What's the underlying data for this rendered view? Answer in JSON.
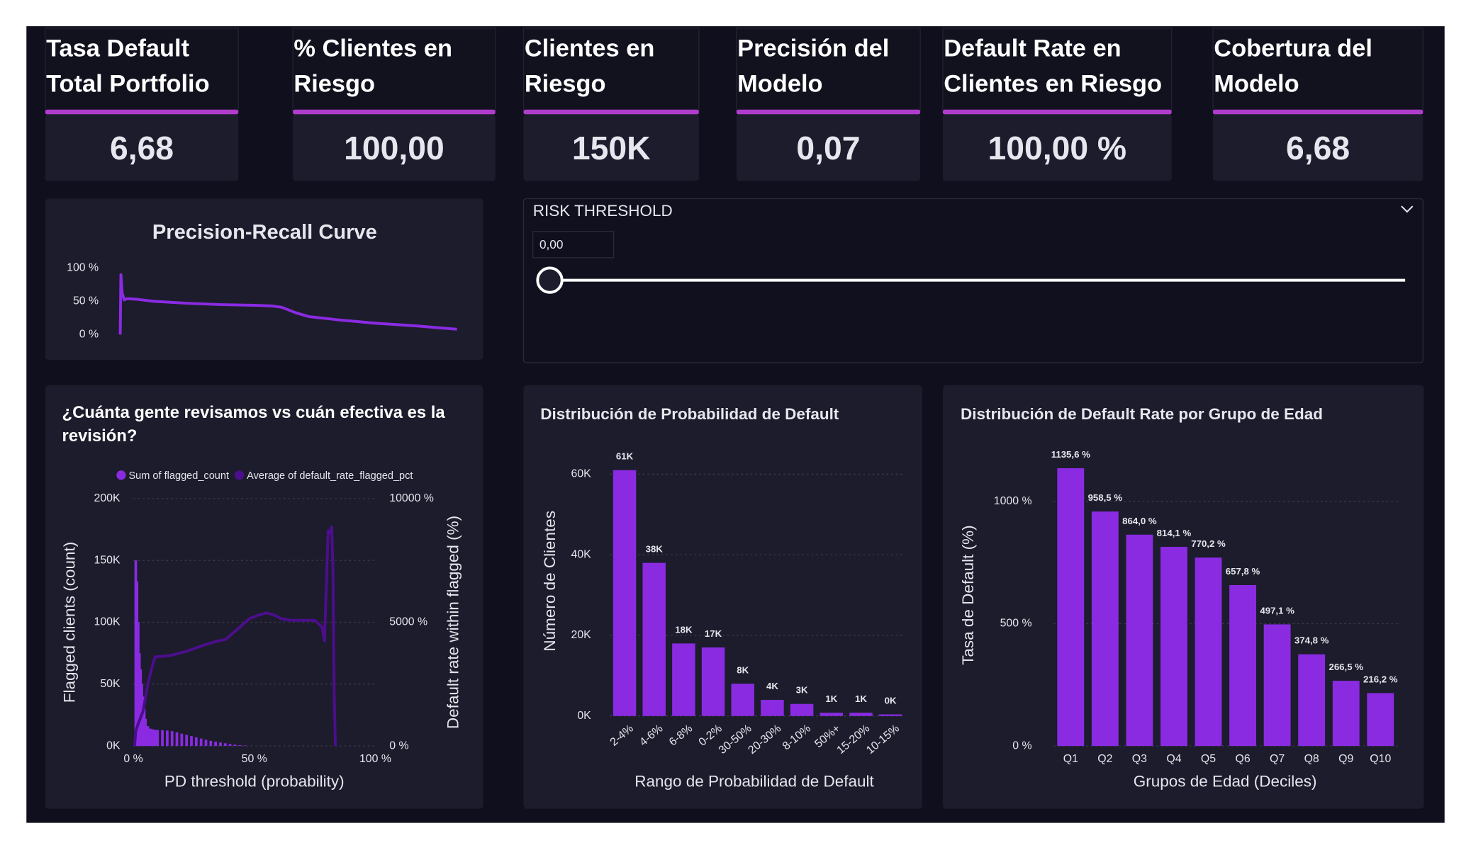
{
  "kpis": [
    {
      "title": "Tasa Default Total Portfolio",
      "value": "6,68"
    },
    {
      "title": "% Clientes en Riesgo",
      "value": "100,00"
    },
    {
      "title": "Clientes en Riesgo",
      "value": "150K"
    },
    {
      "title": "Precisión del Modelo",
      "value": "0,07"
    },
    {
      "title": "Default Rate en Clientes en Riesgo",
      "value": "100,00 %"
    },
    {
      "title": "Cobertura del Modelo",
      "value": "6,68"
    }
  ],
  "slicer": {
    "title": "RISK THRESHOLD",
    "value": "0,00"
  },
  "chart_data": [
    {
      "type": "line",
      "title": "Precision-Recall Curve",
      "color": "#8a2be2",
      "x": [
        0,
        0.002,
        0.006,
        0.012,
        0.02,
        0.05,
        0.1,
        0.2,
        0.3,
        0.4,
        0.45,
        0.48,
        0.52,
        0.56,
        0.65,
        0.76,
        0.88,
        1.0
      ],
      "values": [
        0,
        90,
        62,
        52,
        54,
        53,
        50,
        47,
        45,
        44,
        43,
        41,
        33,
        27,
        22,
        17,
        13,
        8
      ],
      "xlim": [
        0,
        1
      ],
      "ylim": [
        0,
        100
      ],
      "yticks": [
        {
          "value": 0,
          "label": "0 %"
        },
        {
          "value": 50,
          "label": "50 %"
        },
        {
          "value": 100,
          "label": "100 %"
        }
      ]
    },
    {
      "type": "combo",
      "title": "¿Cuánta gente revisamos vs cuán efectiva es la revisión?",
      "x_label": "PD threshold (probability)",
      "y_label": "Flagged clients (count)",
      "y2_label": "Default rate within flagged (%)",
      "xlim": [
        0,
        100
      ],
      "xticks": [
        {
          "value": 0,
          "label": "0 %"
        },
        {
          "value": 50,
          "label": "50 %"
        },
        {
          "value": 100,
          "label": "100 %"
        }
      ],
      "ylim": [
        0,
        200000
      ],
      "yticks": [
        {
          "value": 0,
          "label": "0K"
        },
        {
          "value": 50000,
          "label": "50K"
        },
        {
          "value": 100000,
          "label": "100K"
        },
        {
          "value": 150000,
          "label": "150K"
        },
        {
          "value": 200000,
          "label": "200K"
        }
      ],
      "y2lim": [
        0,
        10000
      ],
      "y2ticks": [
        {
          "value": 0,
          "label": "0 %"
        },
        {
          "value": 5000,
          "label": "5000 %"
        },
        {
          "value": 10000,
          "label": "10000 %"
        }
      ],
      "grid": true,
      "series": [
        {
          "name": "Sum of flagged_count",
          "color": "#8a2be2",
          "type": "bar",
          "x": [
            1,
            1.5,
            2,
            2.5,
            3,
            3.5,
            4,
            4.5,
            5,
            6,
            7,
            8,
            9,
            10,
            12,
            14,
            16,
            18,
            20,
            22,
            24,
            26,
            28,
            30,
            32,
            34,
            36,
            38,
            40,
            42,
            44,
            46
          ],
          "values": [
            150000,
            133000,
            100000,
            75000,
            62000,
            50000,
            40000,
            30000,
            22000,
            16000,
            14000,
            13500,
            13000,
            13000,
            12800,
            12500,
            12000,
            11000,
            10000,
            9000,
            8000,
            7000,
            6000,
            5000,
            4200,
            3500,
            2800,
            2200,
            1600,
            1100,
            700,
            400
          ]
        },
        {
          "name": "Average of default_rate_flagged_pct",
          "color": "#4b0e8c",
          "type": "line",
          "axis": "y2",
          "x": [
            0.5,
            1,
            2,
            4,
            6,
            8,
            9,
            15,
            22,
            30,
            35,
            38,
            44,
            48,
            52,
            55,
            58,
            61,
            65,
            70,
            75,
            78,
            79,
            80.5,
            81,
            82,
            82.5,
            83,
            83.5
          ],
          "values": [
            0,
            600,
            900,
            1400,
            2500,
            3300,
            3600,
            3650,
            3830,
            4100,
            4250,
            4300,
            4800,
            5150,
            5300,
            5380,
            5300,
            5150,
            5080,
            5080,
            5080,
            4800,
            4250,
            8700,
            8600,
            8850,
            7000,
            2000,
            0
          ]
        }
      ]
    },
    {
      "type": "bar",
      "title": "Distribución de Probabilidad de Default",
      "color": "#8a2be2",
      "x_label": "Rango de Probabilidad de Default",
      "y_label": "Número de Clientes",
      "categories": [
        "2-4%",
        "4-6%",
        "6-8%",
        "0-2%",
        "30-50%",
        "20-30%",
        "8-10%",
        "50%+",
        "15-20%",
        "10-15%"
      ],
      "values": [
        61000,
        38000,
        18000,
        17000,
        8000,
        4000,
        3000,
        800,
        800,
        400
      ],
      "value_labels": [
        "61K",
        "38K",
        "18K",
        "17K",
        "8K",
        "4K",
        "3K",
        "1K",
        "1K",
        "0K"
      ],
      "ylim": [
        0,
        60000
      ],
      "yticks": [
        {
          "value": 0,
          "label": "0K"
        },
        {
          "value": 20000,
          "label": "20K"
        },
        {
          "value": 40000,
          "label": "40K"
        },
        {
          "value": 60000,
          "label": "60K"
        }
      ],
      "grid": true
    },
    {
      "type": "bar",
      "title": "Distribución de Default Rate por Grupo de Edad",
      "color": "#8a2be2",
      "x_label": "Grupos de Edad (Deciles)",
      "y_label": "Tasa de Default (%)",
      "categories": [
        "Q1",
        "Q2",
        "Q3",
        "Q4",
        "Q5",
        "Q6",
        "Q7",
        "Q8",
        "Q9",
        "Q10"
      ],
      "values": [
        1135.6,
        958.5,
        864.0,
        814.1,
        770.2,
        657.8,
        497.1,
        374.8,
        266.5,
        216.2
      ],
      "value_labels": [
        "1135,6 %",
        "958,5 %",
        "864,0 %",
        "814,1 %",
        "770,2 %",
        "657,8 %",
        "497,1 %",
        "374,8 %",
        "266,5 %",
        "216,2 %"
      ],
      "ylim": [
        0,
        1000
      ],
      "yticks": [
        {
          "value": 0,
          "label": "0 %"
        },
        {
          "value": 500,
          "label": "500 %"
        },
        {
          "value": 1000,
          "label": "1000 %"
        }
      ],
      "grid": true
    }
  ]
}
